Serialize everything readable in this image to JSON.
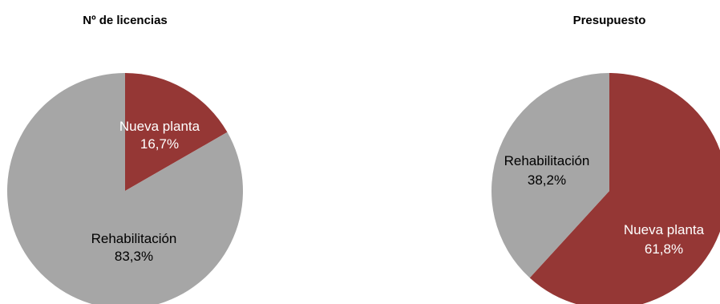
{
  "colors": {
    "nueva_planta": "#953735",
    "rehabilitacion": "#A6A6A6",
    "label_on_dark": "#FFFFFF",
    "label_on_light": "#000000"
  },
  "chart_data": [
    {
      "type": "pie",
      "title": "Nº de licencias",
      "start": "12 o'clock",
      "direction": "clockwise",
      "slices": [
        {
          "label": "Nueva planta",
          "value": 16.7,
          "value_text": "16,7%",
          "color": "#953735"
        },
        {
          "label": "Rehabilitación",
          "value": 83.3,
          "value_text": "83,3%",
          "color": "#A6A6A6"
        }
      ]
    },
    {
      "type": "pie",
      "title": "Presupuesto",
      "start": "12 o'clock",
      "direction": "clockwise",
      "slices": [
        {
          "label": "Nueva planta",
          "value": 61.8,
          "value_text": "61,8%",
          "color": "#953735"
        },
        {
          "label": "Rehabilitación",
          "value": 38.2,
          "value_text": "38,2%",
          "color": "#A6A6A6"
        }
      ]
    }
  ]
}
